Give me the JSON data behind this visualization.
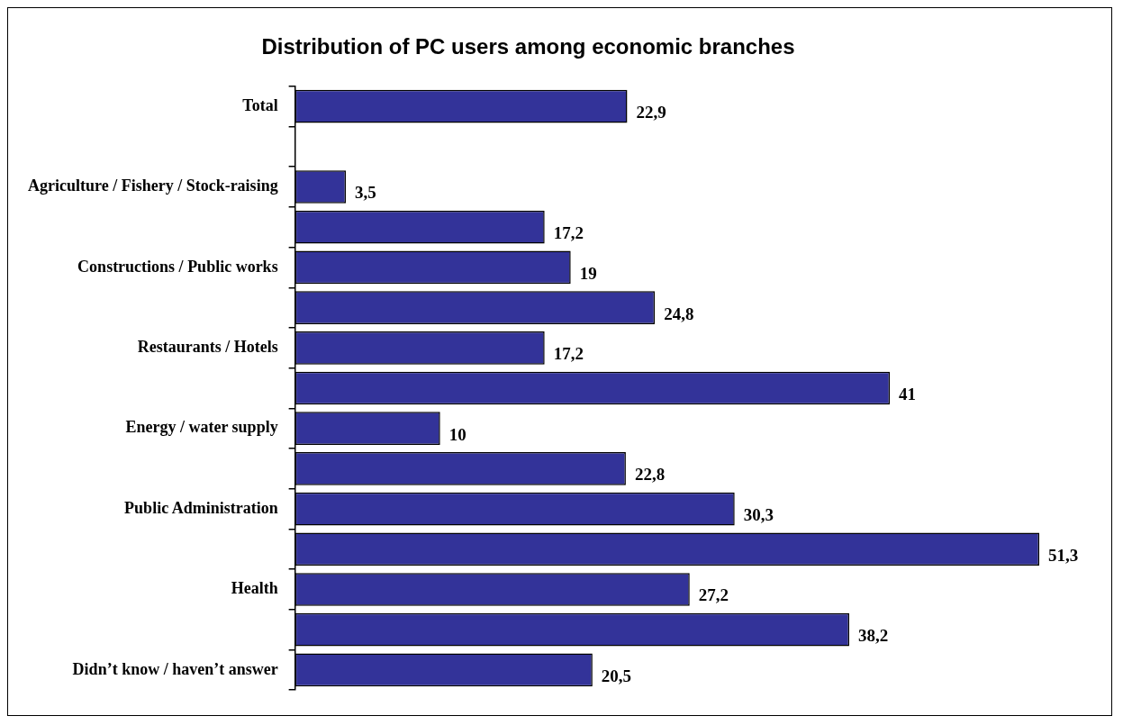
{
  "chart_data": {
    "type": "bar",
    "orientation": "horizontal",
    "title": "Distribution of PC users among economic branches",
    "categories": [
      "Total",
      null,
      "Agriculture / Fishery / Stock-raising",
      null,
      "Constructions / Public works",
      null,
      "Restaurants / Hotels",
      null,
      "Energy / water supply",
      null,
      "Public Administration",
      null,
      "Health",
      null,
      "Didn’t know / haven’t answer"
    ],
    "series": [
      {
        "color": "#333399",
        "values": [
          22.9,
          null,
          3.5,
          17.2,
          19,
          24.8,
          17.2,
          41,
          10,
          22.8,
          30.3,
          51.3,
          27.2,
          38.2,
          20.5
        ],
        "value_labels": [
          "22,9",
          null,
          "3,5",
          "17,2",
          "19",
          "24,8",
          "17,2",
          "41",
          "10",
          "22,8",
          "30,3",
          "51,3",
          "27,2",
          "38,2",
          "20,5"
        ]
      }
    ],
    "legend": false
  }
}
